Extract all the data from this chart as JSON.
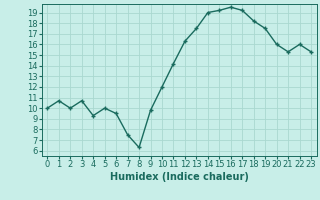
{
  "x": [
    0,
    1,
    2,
    3,
    4,
    5,
    6,
    7,
    8,
    9,
    10,
    11,
    12,
    13,
    14,
    15,
    16,
    17,
    18,
    19,
    20,
    21,
    22,
    23
  ],
  "y": [
    10,
    10.7,
    10,
    10.7,
    9.3,
    10,
    9.5,
    7.5,
    6.3,
    9.8,
    12,
    14.2,
    16.3,
    17.5,
    19.0,
    19.2,
    19.5,
    19.2,
    18.2,
    17.5,
    16.0,
    15.3,
    16.0,
    15.3
  ],
  "line_color": "#1a6b5e",
  "marker": "+",
  "marker_size": 3.5,
  "linewidth": 1.0,
  "background_color": "#c8eee8",
  "grid_color": "#aad8d0",
  "xlabel": "Humidex (Indice chaleur)",
  "xlabel_fontsize": 7,
  "xlim": [
    -0.5,
    23.5
  ],
  "ylim": [
    5.5,
    19.8
  ],
  "yticks": [
    6,
    7,
    8,
    9,
    10,
    11,
    12,
    13,
    14,
    15,
    16,
    17,
    18,
    19
  ],
  "xticks": [
    0,
    1,
    2,
    3,
    4,
    5,
    6,
    7,
    8,
    9,
    10,
    11,
    12,
    13,
    14,
    15,
    16,
    17,
    18,
    19,
    20,
    21,
    22,
    23
  ],
  "tick_fontsize": 6
}
